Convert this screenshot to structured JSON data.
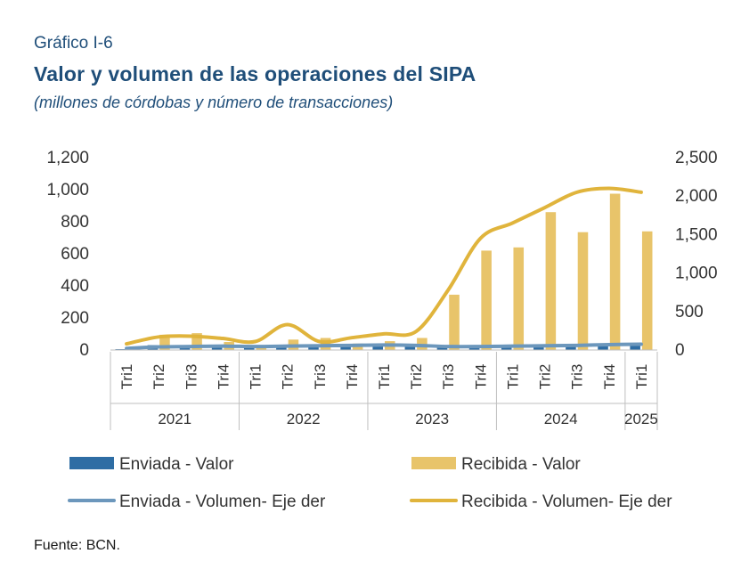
{
  "header": {
    "label": "Gráfico I-6",
    "title": "Valor y volumen de las operaciones del SIPA",
    "subtitle": "(millones de córdobas y número de transacciones)"
  },
  "source": "Fuente: BCN.",
  "chart_data": {
    "type": "bar",
    "categories": [
      "Tri1",
      "Tri2",
      "Tri3",
      "Tri4",
      "Tri1",
      "Tri2",
      "Tri3",
      "Tri4",
      "Tri1",
      "Tri2",
      "Tri3",
      "Tri4",
      "Tri1",
      "Tri2",
      "Tri3",
      "Tri4",
      "Tri1"
    ],
    "groups": [
      {
        "label": "2021",
        "count": 4
      },
      {
        "label": "2022",
        "count": 4
      },
      {
        "label": "2023",
        "count": 4
      },
      {
        "label": "2024",
        "count": 4
      },
      {
        "label": "2025",
        "count": 1
      }
    ],
    "y_left": {
      "ylim": [
        0,
        1200
      ],
      "ticks": [
        "0",
        "200",
        "400",
        "600",
        "800",
        "1,000",
        "1,200"
      ]
    },
    "y_right": {
      "ylim": [
        0,
        2500
      ],
      "ticks": [
        "0",
        "500",
        "1,000",
        "1,500",
        "2,000",
        "2,500"
      ]
    },
    "series": [
      {
        "name": "Enviada - Valor",
        "type": "bar",
        "axis": "left",
        "color": "#2e6da4",
        "values": [
          5,
          30,
          25,
          30,
          20,
          25,
          20,
          30,
          35,
          25,
          15,
          30,
          20,
          20,
          20,
          30,
          35
        ]
      },
      {
        "name": "Recibida - Valor",
        "type": "bar",
        "axis": "left",
        "color": "#e8c46a",
        "values": [
          10,
          95,
          105,
          50,
          30,
          65,
          75,
          40,
          55,
          75,
          345,
          620,
          640,
          860,
          735,
          975,
          740
        ]
      },
      {
        "name": "Enviada - Volumen- Eje der",
        "type": "line",
        "axis": "right",
        "color": "#6c97bc",
        "values": [
          20,
          40,
          45,
          50,
          45,
          50,
          55,
          60,
          65,
          60,
          45,
          45,
          50,
          55,
          60,
          70,
          75
        ]
      },
      {
        "name": "Recibida - Volumen- Eje der",
        "type": "line",
        "axis": "right",
        "color": "#e0b43c",
        "values": [
          80,
          170,
          180,
          150,
          110,
          330,
          110,
          160,
          210,
          240,
          780,
          1450,
          1650,
          1850,
          2050,
          2100,
          2050
        ]
      }
    ],
    "grid": false,
    "legend": "bottom"
  }
}
